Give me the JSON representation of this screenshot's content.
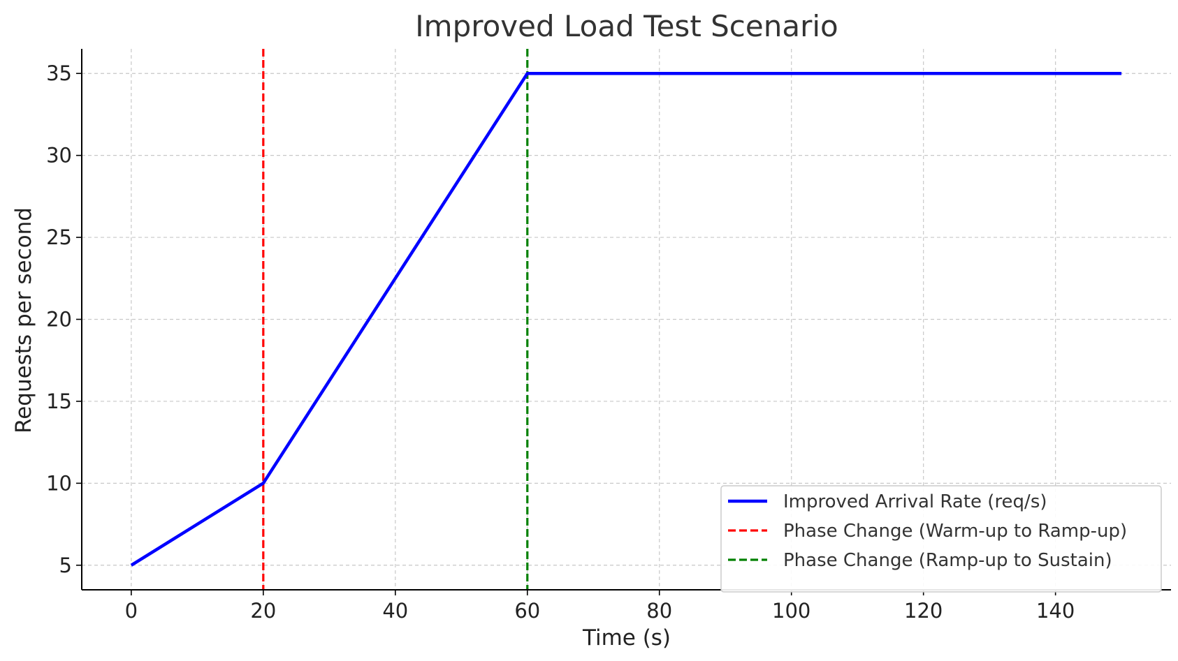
{
  "chart_data": {
    "type": "line",
    "title": "Improved Load Test Scenario",
    "xlabel": "Time (s)",
    "ylabel": "Requests per second",
    "xlim": [
      -7.5,
      157.5
    ],
    "ylim": [
      3.5,
      36.5
    ],
    "xticks": [
      0,
      20,
      40,
      60,
      80,
      100,
      120,
      140
    ],
    "yticks": [
      5,
      10,
      15,
      20,
      25,
      30,
      35
    ],
    "grid": true,
    "legend_position": "lower-right",
    "series": [
      {
        "name": "Improved Arrival Rate (req/s)",
        "color": "#0000ff",
        "style": "solid",
        "x": [
          0,
          20,
          60,
          150
        ],
        "y": [
          5,
          10,
          35,
          35
        ]
      }
    ],
    "vlines": [
      {
        "name": "Phase Change (Warm-up to Ramp-up)",
        "x": 20,
        "color": "#ff0000",
        "style": "dashed"
      },
      {
        "name": "Phase Change (Ramp-up to Sustain)",
        "x": 60,
        "color": "#008000",
        "style": "dashed"
      }
    ]
  }
}
